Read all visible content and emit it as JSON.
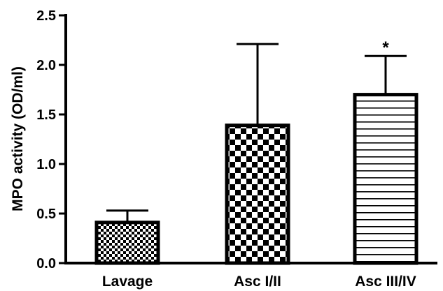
{
  "chart_data": {
    "type": "bar",
    "title": "",
    "xlabel": "",
    "ylabel": "MPO activity (OD/ml)",
    "ylim": [
      0,
      2.5
    ],
    "yticks": [
      "0.0",
      "0.5",
      "1.0",
      "1.5",
      "2.0",
      "2.5"
    ],
    "ytick_values": [
      0,
      0.5,
      1.0,
      1.5,
      2.0,
      2.5
    ],
    "categories": [
      "Lavage",
      "Asc I/II",
      "Asc III/IV"
    ],
    "values": [
      0.41,
      1.39,
      1.7
    ],
    "error_upper": [
      0.53,
      2.21,
      2.09
    ],
    "patterns": [
      "fine-checker",
      "coarse-checker",
      "horizontal-lines"
    ],
    "annotations": [
      {
        "category": "Asc III/IV",
        "text": "*"
      }
    ],
    "grid": false,
    "colors": {
      "bar_edge": "#000000",
      "fill": "#ffffff",
      "pattern": "#000000"
    }
  }
}
